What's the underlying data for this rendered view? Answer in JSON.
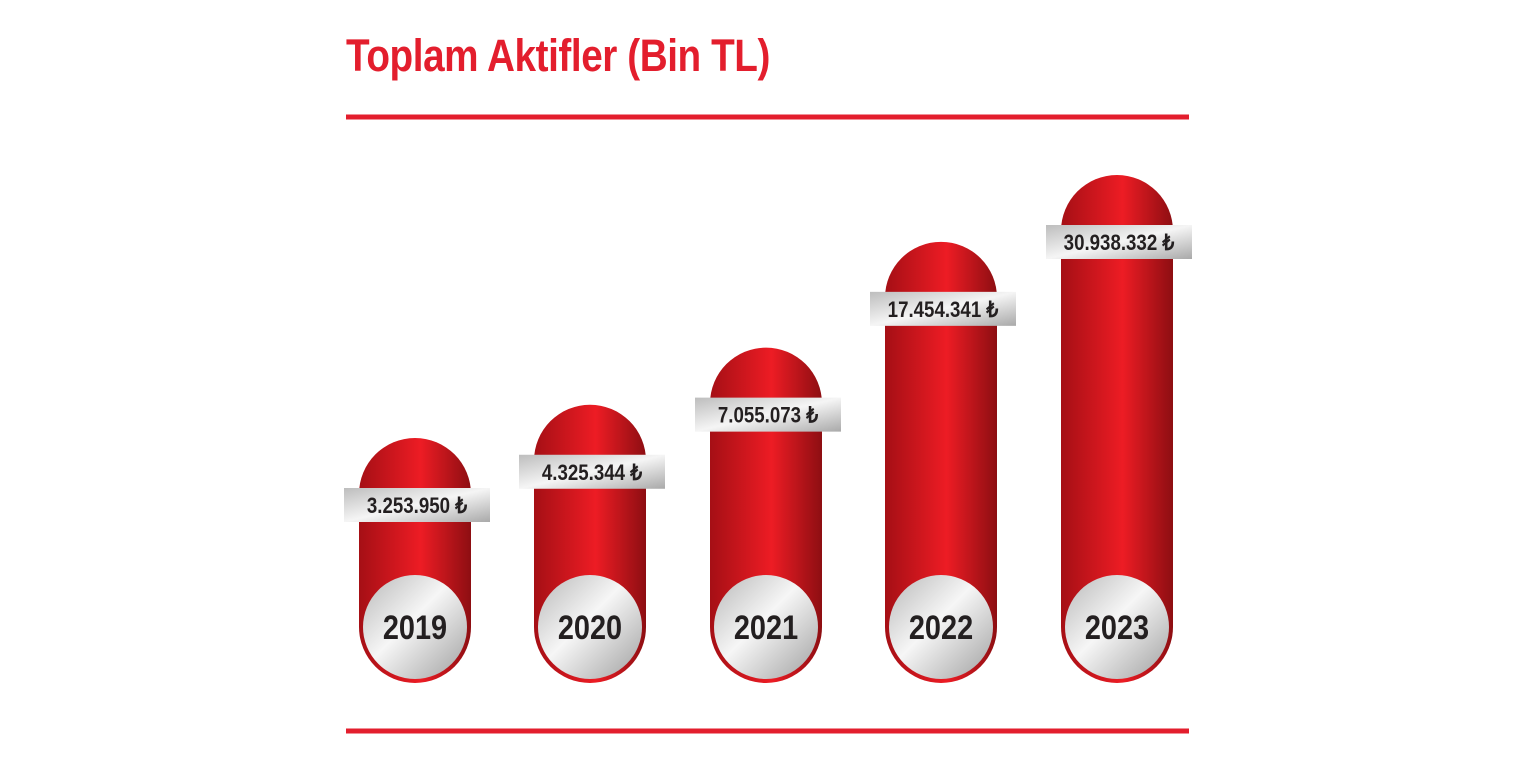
{
  "colors": {
    "accent": "#e31e2d",
    "bar_light": "#ed1c24",
    "bar_dark": "#8d0e12",
    "label_silver": "#d9d9d9",
    "text": "#231f20"
  },
  "chart_data": {
    "type": "bar",
    "title": "Toplam Aktifler (Bin TL)",
    "xlabel": "",
    "ylabel": "",
    "currency_symbol": "₺",
    "categories": [
      "2019",
      "2020",
      "2021",
      "2022",
      "2023"
    ],
    "values": [
      3253950,
      4325344,
      7055073,
      17454341,
      30938332
    ],
    "value_labels": [
      "3.253.950",
      "4.325.344",
      "7.055.073",
      "17.454.341",
      "30.938.332"
    ],
    "legend": "none",
    "grid": false
  }
}
